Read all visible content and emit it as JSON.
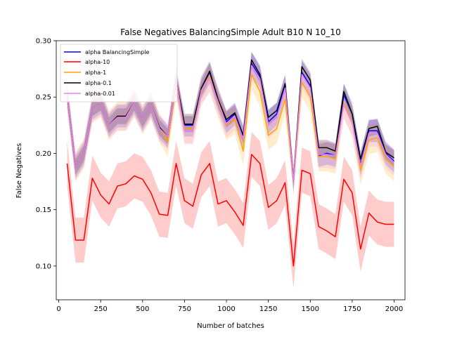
{
  "chart_data": {
    "type": "line",
    "title": "False Negatives BalancingSimple Adult B10 N 10_10",
    "xlabel": "Number of batches",
    "ylabel": "False Negatives",
    "xlim": [
      -15,
      2065
    ],
    "ylim": [
      0.07,
      0.3
    ],
    "xticks": [
      0,
      250,
      500,
      750,
      1000,
      1250,
      1500,
      1750,
      2000
    ],
    "yticks": [
      0.1,
      0.15,
      0.2,
      0.25,
      0.3
    ],
    "ytick_labels": [
      "0.10",
      "0.15",
      "0.20",
      "0.25",
      "0.30"
    ],
    "legend_position": "top-left",
    "x": [
      50,
      100,
      150,
      200,
      250,
      300,
      350,
      400,
      450,
      500,
      550,
      600,
      650,
      700,
      750,
      800,
      850,
      900,
      950,
      1000,
      1050,
      1100,
      1150,
      1200,
      1250,
      1300,
      1350,
      1400,
      1450,
      1500,
      1550,
      1600,
      1650,
      1700,
      1750,
      1800,
      1850,
      1900,
      1950,
      2000
    ],
    "series": [
      {
        "name": "alpha BalancingSimple",
        "color": "#0000ff",
        "values": [
          0.252,
          0.188,
          0.2,
          0.24,
          0.245,
          0.225,
          0.233,
          0.233,
          0.245,
          0.23,
          0.243,
          0.223,
          0.215,
          0.265,
          0.225,
          0.225,
          0.258,
          0.272,
          0.248,
          0.228,
          0.235,
          0.215,
          0.28,
          0.268,
          0.228,
          0.235,
          0.26,
          0.176,
          0.272,
          0.26,
          0.198,
          0.2,
          0.198,
          0.252,
          0.235,
          0.19,
          0.22,
          0.22,
          0.2,
          0.193
        ],
        "band": 0.01
      },
      {
        "name": "alpha-10",
        "color": "#ff0000",
        "values": [
          0.191,
          0.123,
          0.123,
          0.178,
          0.163,
          0.155,
          0.171,
          0.173,
          0.18,
          0.177,
          0.165,
          0.146,
          0.145,
          0.191,
          0.158,
          0.153,
          0.181,
          0.191,
          0.155,
          0.158,
          0.148,
          0.136,
          0.199,
          0.191,
          0.152,
          0.158,
          0.174,
          0.1,
          0.185,
          0.182,
          0.135,
          0.131,
          0.126,
          0.177,
          0.165,
          0.115,
          0.147,
          0.139,
          0.137,
          0.137
        ],
        "band": 0.02
      },
      {
        "name": "alpha-1",
        "color": "#ffa500",
        "values": [
          0.252,
          0.188,
          0.2,
          0.24,
          0.245,
          0.225,
          0.233,
          0.233,
          0.245,
          0.23,
          0.243,
          0.223,
          0.21,
          0.262,
          0.222,
          0.222,
          0.255,
          0.268,
          0.245,
          0.225,
          0.23,
          0.202,
          0.27,
          0.255,
          0.216,
          0.222,
          0.248,
          0.176,
          0.263,
          0.25,
          0.197,
          0.197,
          0.195,
          0.245,
          0.228,
          0.185,
          0.212,
          0.214,
          0.195,
          0.188
        ],
        "band": 0.013
      },
      {
        "name": "alpha-0.1",
        "color": "#000000",
        "values": [
          0.252,
          0.188,
          0.2,
          0.24,
          0.245,
          0.225,
          0.233,
          0.233,
          0.245,
          0.23,
          0.243,
          0.223,
          0.215,
          0.265,
          0.226,
          0.226,
          0.258,
          0.273,
          0.248,
          0.23,
          0.236,
          0.216,
          0.283,
          0.27,
          0.232,
          0.238,
          0.262,
          0.176,
          0.277,
          0.265,
          0.205,
          0.205,
          0.202,
          0.255,
          0.235,
          0.195,
          0.222,
          0.224,
          0.201,
          0.196
        ],
        "band": 0.007
      },
      {
        "name": "alpha-0.01",
        "color": "#ee82ee",
        "values": [
          0.252,
          0.188,
          0.2,
          0.24,
          0.245,
          0.225,
          0.232,
          0.232,
          0.245,
          0.23,
          0.243,
          0.222,
          0.215,
          0.265,
          0.22,
          0.22,
          0.256,
          0.266,
          0.246,
          0.226,
          0.233,
          0.213,
          0.278,
          0.266,
          0.225,
          0.232,
          0.258,
          0.176,
          0.27,
          0.258,
          0.199,
          0.199,
          0.198,
          0.243,
          0.227,
          0.189,
          0.218,
          0.218,
          0.199,
          0.192
        ],
        "band": 0.012
      }
    ]
  }
}
